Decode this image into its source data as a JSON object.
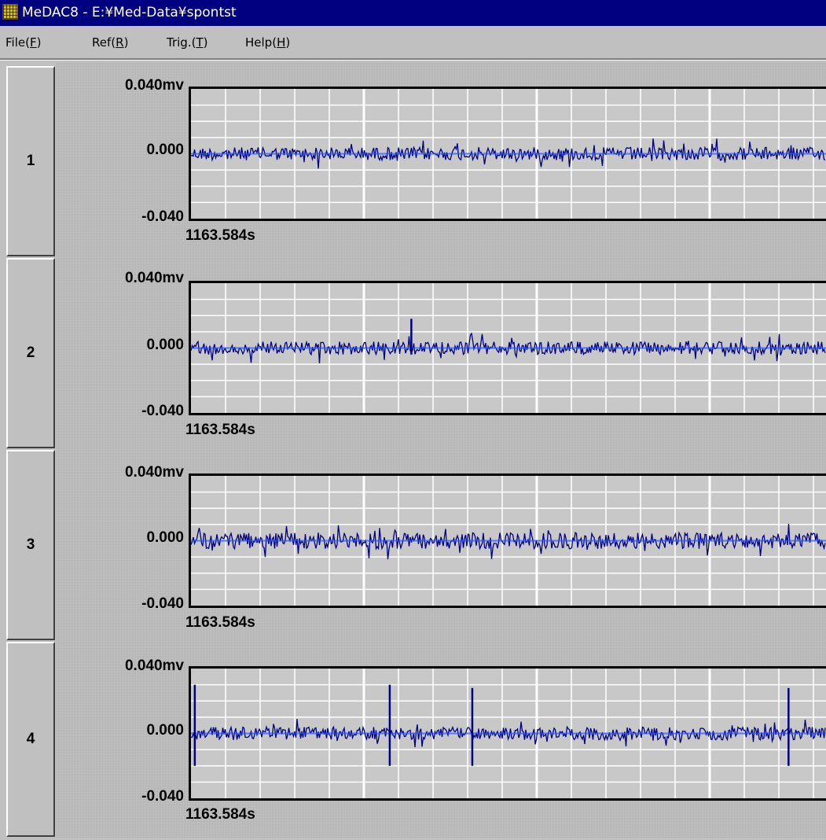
{
  "window": {
    "title": "MeDAC8 - E:¥Med-Data¥spontst"
  },
  "menu": [
    {
      "label": "File(F)",
      "letter": "F"
    },
    {
      "label": "Ref(R)",
      "letter": "R"
    },
    {
      "label": "Trig.(T)",
      "letter": "T"
    },
    {
      "label": "Help(H)",
      "letter": "H"
    }
  ],
  "colors": {
    "titlebar": "#000080",
    "plot_background": "#c8c8c8",
    "grid": "#ffffff",
    "trace": "#000080",
    "baseline": "#1e4bff"
  },
  "channels": [
    {
      "number": "1",
      "y_max_label": "0.040mv",
      "y_mid_label": "0.000",
      "y_min_label": "-0.040",
      "time_label": "1163.584s"
    },
    {
      "number": "2",
      "y_max_label": "0.040mv",
      "y_mid_label": "0.000",
      "y_min_label": "-0.040",
      "time_label": "1163.584s"
    },
    {
      "number": "3",
      "y_max_label": "0.040mv",
      "y_mid_label": "0.000",
      "y_min_label": "-0.040",
      "time_label": "1163.584s"
    },
    {
      "number": "4",
      "y_max_label": "0.040mv",
      "y_mid_label": "0.000",
      "y_min_label": "-0.040",
      "time_label": "1163.584s"
    }
  ],
  "chart_data": [
    {
      "type": "line",
      "title": "1",
      "ylim": [
        -0.04,
        0.04
      ],
      "ylabel": "mv",
      "x_start_label": "1163.584s",
      "grid": true,
      "noise_amplitude_mv": 0.004,
      "spikes": []
    },
    {
      "type": "line",
      "title": "2",
      "ylim": [
        -0.04,
        0.04
      ],
      "ylabel": "mv",
      "x_start_label": "1163.584s",
      "grid": true,
      "noise_amplitude_mv": 0.004,
      "spikes": [
        {
          "x_fraction": 0.347,
          "peak_mv": 0.018,
          "trough_mv": -0.004
        }
      ]
    },
    {
      "type": "line",
      "title": "3",
      "ylim": [
        -0.04,
        0.04
      ],
      "ylabel": "mv",
      "x_start_label": "1163.584s",
      "grid": true,
      "noise_amplitude_mv": 0.005,
      "spikes": []
    },
    {
      "type": "line",
      "title": "4",
      "ylim": [
        -0.04,
        0.04
      ],
      "ylabel": "mv",
      "x_start_label": "1163.584s",
      "grid": true,
      "noise_amplitude_mv": 0.004,
      "spikes": [
        {
          "x_fraction": 0.006,
          "peak_mv": 0.03,
          "trough_mv": -0.02
        },
        {
          "x_fraction": 0.313,
          "peak_mv": 0.03,
          "trough_mv": -0.02
        },
        {
          "x_fraction": 0.443,
          "peak_mv": 0.028,
          "trough_mv": -0.02
        },
        {
          "x_fraction": 0.941,
          "peak_mv": 0.028,
          "trough_mv": -0.02
        }
      ]
    }
  ]
}
